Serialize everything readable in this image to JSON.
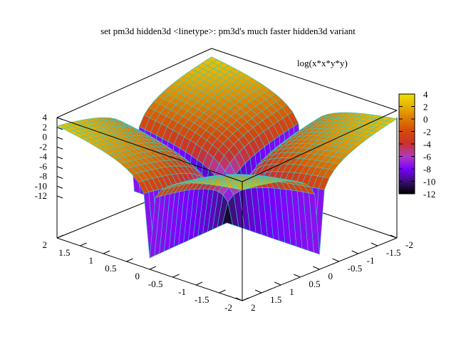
{
  "chart_data": {
    "type": "surface",
    "title": "set pm3d hidden3d <linetype>: pm3d's much faster hidden3d variant",
    "legend": {
      "label": "log(x*x*y*y)",
      "placement": "top-right"
    },
    "function": "log(x*x*y*y)",
    "x_range": [
      -2,
      2
    ],
    "y_range": [
      -2,
      2
    ],
    "z_range": [
      -12,
      4
    ],
    "x_ticks": [
      "-2",
      "-1.5",
      "-1",
      "-0.5",
      "0",
      "0.5",
      "1",
      "1.5",
      "2"
    ],
    "y_ticks": [
      "-2",
      "-1.5",
      "-1",
      "-0.5",
      "0",
      "0.5",
      "1",
      "1.5",
      "2"
    ],
    "z_ticks": [
      "-12",
      "-10",
      "-8",
      "-6",
      "-4",
      "-2",
      "0",
      "2",
      "4"
    ],
    "colorbox": {
      "range": [
        -12,
        4
      ],
      "ticks": [
        "-12",
        "-10",
        "-8",
        "-6",
        "-4",
        "-2",
        "0",
        "2",
        "4"
      ],
      "palette": [
        "#000000",
        "#3a0f73",
        "#7a00ff",
        "#b03ac0",
        "#c93030",
        "#d5490a",
        "#dc7a00",
        "#e6b000",
        "#f0e000"
      ]
    },
    "grid_lines_color": "#33cccc"
  }
}
